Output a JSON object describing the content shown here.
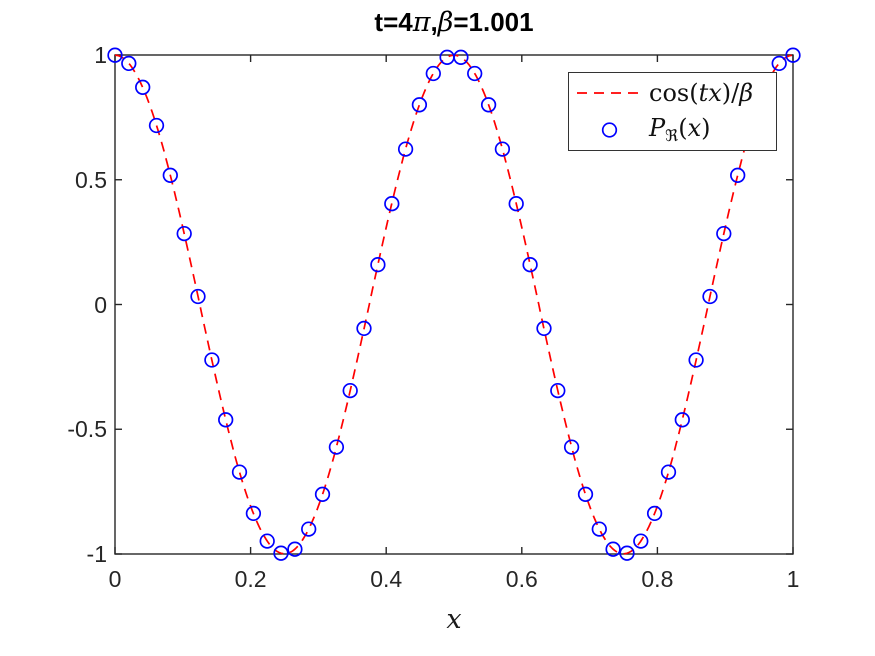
{
  "figure": {
    "background": "#ffffff"
  },
  "chart_data": {
    "type": "line+scatter",
    "title": "t=4π,β=1.001",
    "title_parts": [
      {
        "text": "t=4"
      },
      {
        "text": "π"
      },
      {
        "text": ","
      },
      {
        "text": "β"
      },
      {
        "text": "=1.001"
      }
    ],
    "xlabel": "x",
    "ylabel": "",
    "xlim": [
      0,
      1
    ],
    "ylim": [
      -1,
      1
    ],
    "grid": false,
    "axis_color": "#262626",
    "tick_direction": "in",
    "xticks": {
      "values": [
        0,
        0.2,
        0.4,
        0.6,
        0.8,
        1
      ],
      "labels": [
        "0",
        "0.2",
        "0.4",
        "0.6",
        "0.8",
        "1"
      ]
    },
    "yticks": {
      "values": [
        1,
        0.5,
        0,
        -0.5,
        -1
      ],
      "labels": [
        "1",
        "0.5",
        "0",
        "-0.5",
        "-1"
      ]
    },
    "legend": {
      "position": "northeast",
      "entries": [
        {
          "label": "cos(tx)/β",
          "parts": [
            {
              "t": "cos("
            },
            {
              "t": "tx"
            },
            {
              "t": ")/"
            },
            {
              "t": "β"
            }
          ],
          "sample": "dashed-line",
          "color": "#ff0000"
        },
        {
          "label": "Pℜ(x)",
          "parts": [
            {
              "t": "P"
            },
            {
              "t": "ℜ"
            },
            {
              "t": "("
            },
            {
              "t": "x"
            },
            {
              "t": ")"
            }
          ],
          "sample": "circle",
          "color": "#0000ff"
        }
      ]
    },
    "series": [
      {
        "name": "cos(tx)/β",
        "type": "line",
        "linestyle": "dashed",
        "color": "#ff0000",
        "formula": "cos(t*x)/beta",
        "params": {
          "t": 12.566370614359172,
          "beta": 1.001
        }
      },
      {
        "name": "Pℜ(x)",
        "type": "scatter",
        "marker": "circle",
        "color": "#0000ff",
        "x": [
          0,
          0.0204,
          0.0408,
          0.0612,
          0.0816,
          0.102,
          0.1224,
          0.1429,
          0.1633,
          0.1837,
          0.2041,
          0.2245,
          0.2449,
          0.2653,
          0.2857,
          0.3061,
          0.3265,
          0.3469,
          0.3673,
          0.3878,
          0.4082,
          0.4286,
          0.449,
          0.4694,
          0.4898,
          0.5102,
          0.5306,
          0.551,
          0.5714,
          0.5918,
          0.6122,
          0.6327,
          0.6531,
          0.6735,
          0.6939,
          0.7143,
          0.7347,
          0.7551,
          0.7755,
          0.7959,
          0.8163,
          0.8367,
          0.8571,
          0.8776,
          0.898,
          0.9184,
          0.9388,
          0.9592,
          0.9796,
          1
        ],
        "y": [
          0.999,
          0.9663,
          0.8704,
          0.7176,
          0.5179,
          0.2842,
          0.032,
          -0.2223,
          -0.4621,
          -0.6716,
          -0.8373,
          -0.9481,
          -0.9969,
          -0.9806,
          -0.9001,
          -0.7607,
          -0.5715,
          -0.345,
          -0.0959,
          0.1594,
          0.404,
          0.6229,
          0.8006,
          0.926,
          0.9908,
          0.9908,
          0.926,
          0.8006,
          0.6229,
          0.404,
          0.1594,
          -0.0959,
          -0.345,
          -0.5715,
          -0.7607,
          -0.9001,
          -0.9806,
          -0.9969,
          -0.9481,
          -0.8373,
          -0.6716,
          -0.4621,
          -0.2223,
          0.032,
          0.2842,
          0.5179,
          0.7176,
          0.8704,
          0.9663,
          0.999
        ]
      }
    ]
  }
}
